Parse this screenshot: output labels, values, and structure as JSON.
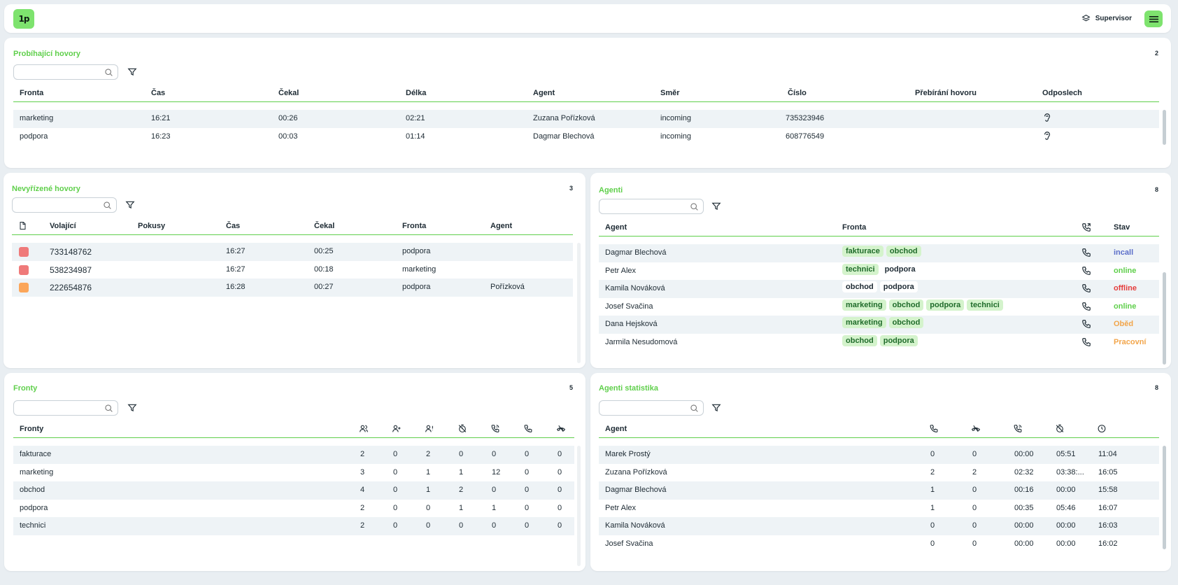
{
  "header": {
    "logo_text": "1p",
    "role_label": "Supervisor"
  },
  "colors": {
    "accent": "#5fcf4b",
    "red": "#ef7a7a",
    "orange": "#fba65a",
    "status_incall": "#5b6ec9",
    "status_online": "#5fcf4b",
    "status_offline": "#e53c3c",
    "status_break": "#f2a54a"
  },
  "active_calls": {
    "title": "Probíhající hovory",
    "count": "2",
    "columns": [
      "Fronta",
      "Čas",
      "Čekal",
      "Délka",
      "Agent",
      "Směr",
      "Číslo",
      "Přebírání hovoru",
      "Odposlech"
    ],
    "rows": [
      {
        "queue": "marketing",
        "time": "16:21",
        "waited": "00:26",
        "length": "02:21",
        "agent": "Zuzana Pořízková",
        "direction": "incoming",
        "number": "735323946"
      },
      {
        "queue": "podpora",
        "time": "16:23",
        "waited": "00:03",
        "length": "01:14",
        "agent": "Dagmar Blechová",
        "direction": "incoming",
        "number": "608776549"
      }
    ]
  },
  "missed_calls": {
    "title": "Nevyřízené hovory",
    "count": "3",
    "columns": [
      "Volající",
      "Pokusy",
      "Čas",
      "Čekal",
      "Fronta",
      "Agent"
    ],
    "rows": [
      {
        "color": "red",
        "caller": "733148762",
        "attempts": "",
        "time": "16:27",
        "waited": "00:25",
        "queue": "podpora",
        "agent": ""
      },
      {
        "color": "red",
        "caller": "538234987",
        "attempts": "",
        "time": "16:27",
        "waited": "00:18",
        "queue": "marketing",
        "agent": ""
      },
      {
        "color": "orange",
        "caller": "222654876",
        "attempts": "",
        "time": "16:28",
        "waited": "00:27",
        "queue": "podpora",
        "agent": "Pořízková"
      }
    ]
  },
  "agents": {
    "title": "Agenti",
    "count": "8",
    "columns": [
      "Agent",
      "Fronta",
      "Stav"
    ],
    "rows": [
      {
        "name": "Dagmar Blechová",
        "queues": [
          {
            "label": "fakturace",
            "active": true
          },
          {
            "label": "obchod",
            "active": true
          }
        ],
        "status": "incall",
        "status_key": "status_incall"
      },
      {
        "name": "Petr Alex",
        "queues": [
          {
            "label": "technici",
            "active": true
          },
          {
            "label": "podpora",
            "active": false
          }
        ],
        "status": "online",
        "status_key": "status_online"
      },
      {
        "name": "Kamila Nováková",
        "queues": [
          {
            "label": "obchod",
            "active": false
          },
          {
            "label": "podpora",
            "active": false
          }
        ],
        "status": "offline",
        "status_key": "status_offline"
      },
      {
        "name": "Josef Svačina",
        "queues": [
          {
            "label": "marketing",
            "active": true
          },
          {
            "label": "obchod",
            "active": true
          },
          {
            "label": "podpora",
            "active": true
          },
          {
            "label": "technici",
            "active": true
          }
        ],
        "status": "online",
        "status_key": "status_online"
      },
      {
        "name": "Dana Hejsková",
        "queues": [
          {
            "label": "marketing",
            "active": true
          },
          {
            "label": "obchod",
            "active": true
          }
        ],
        "status": "Oběd",
        "status_key": "status_break"
      },
      {
        "name": "Jarmila Nesudomová",
        "queues": [
          {
            "label": "obchod",
            "active": true
          },
          {
            "label": "podpora",
            "active": true
          }
        ],
        "status": "Pracovní",
        "status_key": "status_break"
      }
    ]
  },
  "queues": {
    "title": "Fronty",
    "count": "5",
    "columns": [
      "Fronty"
    ],
    "rows": [
      {
        "name": "fakturace",
        "vals": [
          "2",
          "0",
          "2",
          "0",
          "0",
          "0",
          "0"
        ]
      },
      {
        "name": "marketing",
        "vals": [
          "3",
          "0",
          "1",
          "1",
          "12",
          "0",
          "0"
        ]
      },
      {
        "name": "obchod",
        "vals": [
          "4",
          "0",
          "1",
          "2",
          "0",
          "0",
          "0"
        ]
      },
      {
        "name": "podpora",
        "vals": [
          "2",
          "0",
          "0",
          "1",
          "1",
          "0",
          "0"
        ]
      },
      {
        "name": "technici",
        "vals": [
          "2",
          "0",
          "0",
          "0",
          "0",
          "0",
          "0"
        ]
      }
    ]
  },
  "agent_stats": {
    "title": "Agenti statistika",
    "count": "8",
    "columns": [
      "Agent"
    ],
    "rows": [
      {
        "name": "Marek Prostý",
        "vals": [
          "0",
          "0",
          "00:00",
          "05:51",
          "11:04"
        ]
      },
      {
        "name": "Zuzana Pořízková",
        "vals": [
          "2",
          "2",
          "02:32",
          "03:38:...",
          "16:05"
        ]
      },
      {
        "name": "Dagmar Blechová",
        "vals": [
          "1",
          "0",
          "00:16",
          "00:00",
          "15:58"
        ]
      },
      {
        "name": "Petr Alex",
        "vals": [
          "1",
          "0",
          "00:35",
          "05:46",
          "16:07"
        ]
      },
      {
        "name": "Kamila Nováková",
        "vals": [
          "0",
          "0",
          "00:00",
          "00:00",
          "16:03"
        ]
      },
      {
        "name": "Josef Svačina",
        "vals": [
          "0",
          "0",
          "00:00",
          "00:00",
          "16:02"
        ]
      }
    ]
  }
}
